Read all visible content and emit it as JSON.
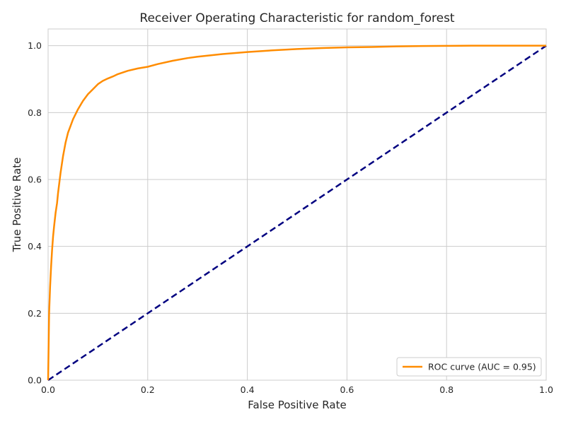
{
  "chart_data": {
    "type": "line",
    "title": "Receiver Operating Characteristic for random_forest",
    "xlabel": "False Positive Rate",
    "ylabel": "True Positive Rate",
    "xlim": [
      0.0,
      1.0
    ],
    "ylim": [
      0.0,
      1.05
    ],
    "xticks": [
      0.0,
      0.2,
      0.4,
      0.6,
      0.8,
      1.0
    ],
    "yticks": [
      0.0,
      0.2,
      0.4,
      0.6,
      0.8,
      1.0
    ],
    "xtick_labels": [
      "0.0",
      "0.2",
      "0.4",
      "0.6",
      "0.8",
      "1.0"
    ],
    "ytick_labels": [
      "0.0",
      "0.2",
      "0.4",
      "0.6",
      "0.8",
      "1.0"
    ],
    "grid": true,
    "legend_position": "lower-right",
    "series": [
      {
        "name": "ROC curve (AUC = 0.95)",
        "color": "#ff8c00",
        "style": "solid",
        "x": [
          0.0,
          0.002,
          0.004,
          0.006,
          0.008,
          0.01,
          0.012,
          0.015,
          0.018,
          0.02,
          0.025,
          0.03,
          0.035,
          0.04,
          0.045,
          0.05,
          0.06,
          0.07,
          0.08,
          0.09,
          0.1,
          0.11,
          0.12,
          0.13,
          0.14,
          0.15,
          0.16,
          0.18,
          0.2,
          0.22,
          0.25,
          0.28,
          0.3,
          0.35,
          0.4,
          0.45,
          0.5,
          0.55,
          0.6,
          0.65,
          0.7,
          0.75,
          0.8,
          0.85,
          0.9,
          0.95,
          1.0
        ],
        "y": [
          0.0,
          0.2,
          0.28,
          0.34,
          0.39,
          0.43,
          0.46,
          0.5,
          0.53,
          0.56,
          0.62,
          0.67,
          0.71,
          0.74,
          0.76,
          0.78,
          0.81,
          0.835,
          0.855,
          0.87,
          0.885,
          0.895,
          0.902,
          0.908,
          0.915,
          0.92,
          0.925,
          0.932,
          0.937,
          0.945,
          0.955,
          0.963,
          0.967,
          0.975,
          0.981,
          0.986,
          0.99,
          0.993,
          0.995,
          0.996,
          0.998,
          0.999,
          0.9995,
          1.0,
          1.0,
          1.0,
          1.0
        ]
      },
      {
        "name": "",
        "color": "#000080",
        "style": "dashed",
        "x": [
          0.0,
          1.0
        ],
        "y": [
          0.0,
          1.0
        ]
      }
    ]
  }
}
